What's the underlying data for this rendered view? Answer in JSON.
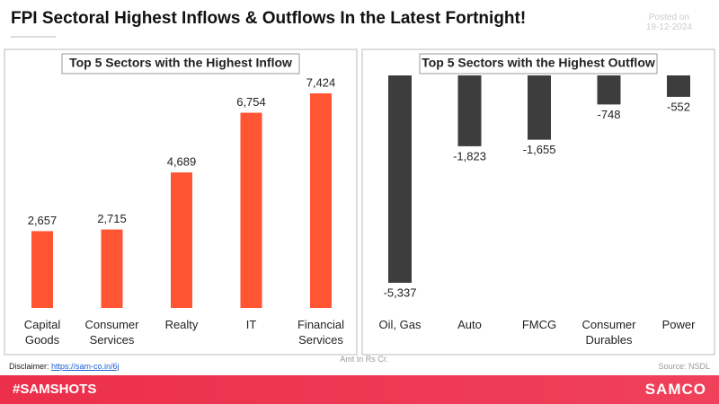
{
  "header": {
    "title": "FPI Sectoral Highest Inflows & Outflows In the Latest Fortnight!",
    "posted": "Posted on",
    "date": "19-12-2024"
  },
  "chart_data": [
    {
      "type": "bar",
      "title": "Top 5 Sectors with the Highest Inflow",
      "categories": [
        "Capital Goods",
        "Consumer Services",
        "Realty",
        "IT",
        "Financial Services"
      ],
      "values": [
        2657,
        2715,
        4689,
        6754,
        7424
      ],
      "value_labels": [
        "2,657",
        "2,715",
        "4,689",
        "6,754",
        "7,424"
      ],
      "color": "#ff5533"
    },
    {
      "type": "bar",
      "title": "Top 5 Sectors with the Highest Outflow",
      "categories": [
        "Oil, Gas",
        "Auto",
        "FMCG",
        "Consumer Durables",
        "Power"
      ],
      "values": [
        -5337,
        -1823,
        -1655,
        -748,
        -552
      ],
      "value_labels": [
        "-5,337",
        "-1,823",
        "-1,655",
        "-748",
        "-552"
      ],
      "color": "#3d3d3d"
    }
  ],
  "footer": {
    "unit_note": "Amt In Rs Cr.",
    "disclaimer_label": "Disclaimer:",
    "disclaimer_link": "https://sam-co.in/6j",
    "source": "Source: NSDL",
    "hashtag": "#SAMSHOTS",
    "brand": "SAMCO"
  }
}
